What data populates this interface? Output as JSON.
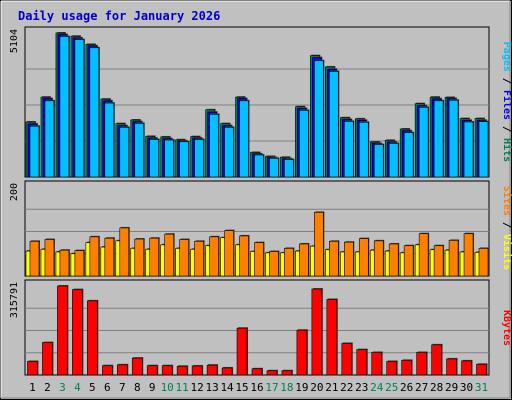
{
  "chart_data": {
    "type": "bar",
    "title": "Daily usage for January 2026",
    "categories": [
      "1",
      "2",
      "3",
      "4",
      "5",
      "6",
      "7",
      "8",
      "9",
      "10",
      "11",
      "12",
      "13",
      "14",
      "15",
      "16",
      "17",
      "18",
      "19",
      "20",
      "21",
      "22",
      "23",
      "24",
      "25",
      "26",
      "27",
      "28",
      "29",
      "30",
      "31"
    ],
    "weekend_days": [
      "3",
      "4",
      "10",
      "11",
      "17",
      "18",
      "24",
      "25",
      "31"
    ],
    "colors": {
      "hits": "#00805c",
      "files": "#0000ff",
      "pages": "#00c0ff",
      "visits": "#ffff00",
      "sites": "#ff8000",
      "kbytes": "#ff0000",
      "weekday_label": "#000000",
      "weekend_label": "#00805c",
      "panel_bg": "#c0c0c0",
      "grid": "#808080"
    },
    "panels": [
      {
        "id": "hits-files-pages",
        "max_label": "5104",
        "ymax": 5104,
        "labels": [
          {
            "text": "Pages",
            "key": "pages"
          },
          {
            "text": " / ",
            "key": "sep"
          },
          {
            "text": "Files",
            "key": "files"
          },
          {
            "text": " / ",
            "key": "sep"
          },
          {
            "text": "Hits",
            "key": "hits"
          }
        ],
        "series": [
          {
            "key": "hits",
            "values": [
              1950,
              2830,
              5104,
              4990,
              4700,
              2760,
              1890,
              2020,
              1440,
              1420,
              1320,
              1430,
              2380,
              1890,
              2830,
              870,
              730,
              700,
              2490,
              4300,
              3900,
              2100,
              2060,
              1240,
              1300,
              1700,
              2600,
              2830,
              2820,
              2070,
              2070
            ]
          },
          {
            "key": "files",
            "values": [
              1880,
              2780,
              5050,
              4930,
              4650,
              2700,
              1820,
              1960,
              1380,
              1360,
              1280,
              1380,
              2300,
              1820,
              2780,
              820,
              690,
              650,
              2430,
              4230,
              3820,
              2040,
              2010,
              1190,
              1240,
              1640,
              2530,
              2770,
              2780,
              2010,
              2010
            ]
          },
          {
            "key": "pages",
            "values": [
              1800,
              2700,
              4980,
              4870,
              4580,
              2620,
              1760,
              1900,
              1330,
              1310,
              1250,
              1330,
              2220,
              1760,
              2700,
              780,
              660,
              620,
              2360,
              4120,
              3740,
              1970,
              1940,
              1150,
              1190,
              1570,
              2470,
              2700,
              2720,
              1950,
              1960
            ]
          }
        ]
      },
      {
        "id": "visits-sites",
        "max_label": "200",
        "ymax": 200,
        "labels": [
          {
            "text": "Sites",
            "key": "sites"
          },
          {
            "text": " / ",
            "key": "sep"
          },
          {
            "text": "Visits",
            "key": "visits"
          }
        ],
        "series": [
          {
            "key": "visits",
            "values": [
              56,
              60,
              54,
              50,
              75,
              65,
              79,
              62,
              60,
              70,
              62,
              60,
              68,
              86,
              70,
              55,
              52,
              52,
              56,
              67,
              59,
              54,
              54,
              58,
              56,
              52,
              70,
              59,
              58,
              54,
              53
            ]
          },
          {
            "key": "sites",
            "values": [
              78,
              82,
              58,
              57,
              88,
              85,
              108,
              83,
              85,
              94,
              82,
              78,
              88,
              102,
              90,
              75,
              55,
              62,
              72,
              143,
              78,
              76,
              84,
              79,
              72,
              68,
              95,
              68,
              80,
              95,
              62
            ]
          }
        ]
      },
      {
        "id": "kbytes",
        "max_label": "315791",
        "ymax": 315791,
        "labels": [
          {
            "text": "KBytes",
            "key": "kbytes"
          }
        ],
        "series": [
          {
            "key": "kbytes",
            "values": [
              48000,
              115000,
              315791,
              303000,
              263000,
              33000,
              36000,
              60000,
              33000,
              33000,
              31000,
              32000,
              35000,
              25000,
              166000,
              22000,
              15000,
              15000,
              159000,
              305000,
              268000,
              112000,
              90000,
              80000,
              48000,
              52000,
              80000,
              107000,
              57000,
              50000,
              38000
            ]
          }
        ]
      }
    ]
  }
}
